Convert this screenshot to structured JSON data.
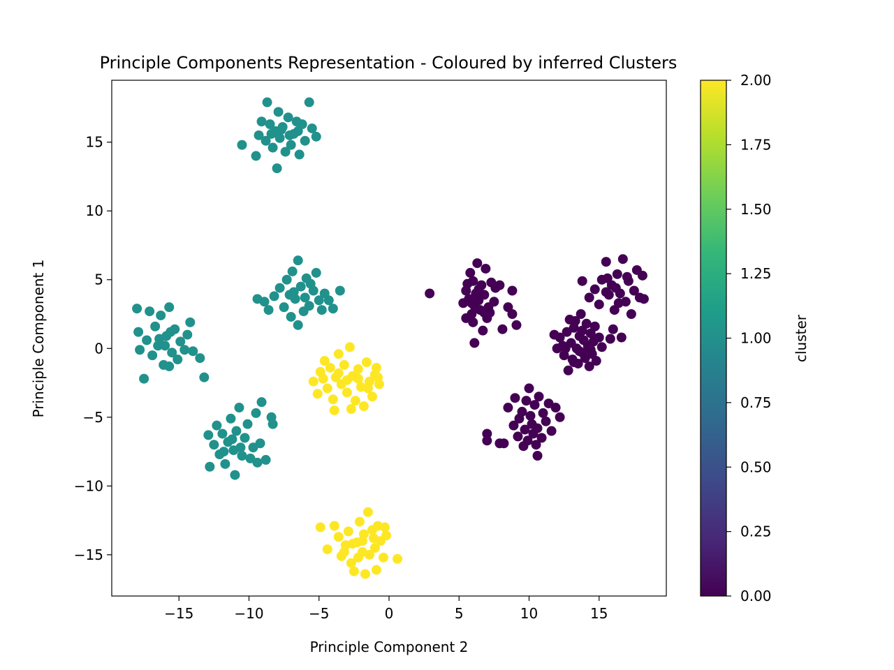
{
  "chart_data": {
    "type": "scatter",
    "title": "Principle Components Representation - Coloured by inferred Clusters",
    "xlabel": "Principle Component 2",
    "ylabel": "Principle Component 1",
    "xlim": [
      -19.8,
      19.8
    ],
    "ylim": [
      -18.0,
      19.5
    ],
    "xticks": [
      -15,
      -10,
      -5,
      0,
      5,
      10,
      15
    ],
    "xtick_labels": [
      "−15",
      "−10",
      "−5",
      "0",
      "5",
      "10",
      "15"
    ],
    "yticks": [
      -15,
      -10,
      -5,
      0,
      5,
      10,
      15
    ],
    "ytick_labels": [
      "−15",
      "−10",
      "−5",
      "0",
      "5",
      "10",
      "15"
    ],
    "grid": false,
    "colorbar": {
      "label": "cluster",
      "range": [
        0.0,
        2.0
      ],
      "ticks": [
        0.0,
        0.25,
        0.5,
        0.75,
        1.0,
        1.25,
        1.5,
        1.75,
        2.0
      ],
      "tick_labels": [
        "0.00",
        "0.25",
        "0.50",
        "0.75",
        "1.00",
        "1.25",
        "1.50",
        "1.75",
        "2.00"
      ],
      "colormap": "viridis",
      "colormap_stops": [
        "#440154",
        "#482878",
        "#3e4989",
        "#31688e",
        "#26828e",
        "#1f9e89",
        "#35b779",
        "#6ece58",
        "#b5de2b",
        "#fde725"
      ]
    },
    "series": [
      {
        "name": "cluster 0",
        "cluster": 0,
        "color": "#440154",
        "points": [
          [
            2.9,
            4.0
          ],
          [
            5.3,
            3.3
          ],
          [
            5.5,
            4.2
          ],
          [
            5.7,
            3.6
          ],
          [
            5.8,
            5.5
          ],
          [
            5.9,
            2.5
          ],
          [
            6.0,
            4.9
          ],
          [
            6.1,
            3.1
          ],
          [
            6.2,
            4.0
          ],
          [
            6.3,
            6.2
          ],
          [
            6.4,
            3.5
          ],
          [
            6.5,
            2.8
          ],
          [
            6.6,
            4.6
          ],
          [
            6.7,
            1.3
          ],
          [
            6.8,
            3.9
          ],
          [
            6.9,
            5.8
          ],
          [
            7.0,
            2.2
          ],
          [
            7.1,
            3.0
          ],
          [
            7.3,
            4.8
          ],
          [
            7.5,
            3.4
          ],
          [
            7.6,
            4.4
          ],
          [
            5.5,
            2.2
          ],
          [
            6.0,
            1.9
          ],
          [
            6.1,
            0.4
          ],
          [
            5.6,
            4.7
          ],
          [
            6.4,
            4.3
          ],
          [
            7.2,
            2.6
          ],
          [
            8.1,
            1.4
          ],
          [
            8.5,
            3.0
          ],
          [
            8.8,
            2.5
          ],
          [
            8.8,
            4.2
          ],
          [
            9.1,
            1.7
          ],
          [
            7.9,
            4.6
          ],
          [
            6.8,
            2.6
          ],
          [
            6.3,
            3.7
          ],
          [
            5.9,
            3.3
          ],
          [
            12.2,
            0.8
          ],
          [
            12.4,
            0.2
          ],
          [
            12.5,
            -0.5
          ],
          [
            12.7,
            1.2
          ],
          [
            12.8,
            -1.6
          ],
          [
            13.0,
            0.4
          ],
          [
            13.1,
            -0.8
          ],
          [
            13.2,
            1.5
          ],
          [
            13.3,
            2.0
          ],
          [
            13.4,
            0.0
          ],
          [
            13.5,
            -1.1
          ],
          [
            13.6,
            0.9
          ],
          [
            13.7,
            2.5
          ],
          [
            13.8,
            -0.3
          ],
          [
            13.9,
            0.6
          ],
          [
            14.0,
            -0.7
          ],
          [
            14.1,
            1.8
          ],
          [
            14.2,
            0.2
          ],
          [
            14.3,
            -1.3
          ],
          [
            14.4,
            1.1
          ],
          [
            14.5,
            -0.4
          ],
          [
            14.6,
            0.5
          ],
          [
            14.8,
            -0.9
          ],
          [
            15.0,
            0.8
          ],
          [
            15.2,
            0.1
          ],
          [
            12.0,
            0.0
          ],
          [
            13.6,
            -0.2
          ],
          [
            12.9,
            2.1
          ],
          [
            14.7,
            1.6
          ],
          [
            11.8,
            1.0
          ],
          [
            13.2,
            -1.0
          ],
          [
            12.6,
            0.0
          ],
          [
            14.4,
            -0.1
          ],
          [
            13.8,
            1.3
          ],
          [
            13.8,
            4.9
          ],
          [
            14.3,
            3.7
          ],
          [
            14.7,
            4.3
          ],
          [
            15.0,
            3.2
          ],
          [
            15.2,
            5.0
          ],
          [
            15.5,
            6.3
          ],
          [
            15.7,
            3.9
          ],
          [
            15.9,
            4.6
          ],
          [
            16.1,
            2.8
          ],
          [
            16.3,
            5.4
          ],
          [
            16.5,
            4.0
          ],
          [
            16.7,
            6.5
          ],
          [
            16.9,
            3.4
          ],
          [
            17.1,
            4.9
          ],
          [
            17.3,
            2.5
          ],
          [
            17.5,
            4.2
          ],
          [
            17.7,
            5.7
          ],
          [
            17.9,
            3.7
          ],
          [
            18.1,
            5.3
          ],
          [
            18.2,
            3.6
          ],
          [
            16.0,
            1.4
          ],
          [
            15.8,
            0.7
          ],
          [
            16.6,
            0.8
          ],
          [
            15.5,
            4.1
          ],
          [
            16.4,
            3.3
          ],
          [
            17.0,
            5.2
          ],
          [
            16.2,
            4.4
          ],
          [
            15.6,
            5.1
          ],
          [
            8.2,
            -6.9
          ],
          [
            8.5,
            -4.3
          ],
          [
            8.9,
            -5.6
          ],
          [
            9.0,
            -3.6
          ],
          [
            9.2,
            -6.4
          ],
          [
            9.3,
            -5.1
          ],
          [
            9.5,
            -4.6
          ],
          [
            9.6,
            -7.1
          ],
          [
            9.7,
            -5.9
          ],
          [
            9.8,
            -3.8
          ],
          [
            9.9,
            -6.7
          ],
          [
            10.0,
            -2.9
          ],
          [
            10.1,
            -4.9
          ],
          [
            10.2,
            -5.5
          ],
          [
            10.3,
            -6.2
          ],
          [
            10.4,
            -4.1
          ],
          [
            10.5,
            -7.0
          ],
          [
            10.6,
            -5.8
          ],
          [
            10.7,
            -3.5
          ],
          [
            10.9,
            -6.5
          ],
          [
            11.0,
            -4.7
          ],
          [
            11.2,
            -5.3
          ],
          [
            11.4,
            -4.0
          ],
          [
            11.6,
            -6.0
          ],
          [
            12.2,
            -5.0
          ],
          [
            7.0,
            -6.7
          ],
          [
            7.0,
            -6.2
          ],
          [
            7.9,
            -6.9
          ],
          [
            10.6,
            -7.8
          ],
          [
            11.9,
            -4.3
          ]
        ]
      },
      {
        "name": "cluster 1",
        "cluster": 1,
        "color": "#21918c",
        "points": [
          [
            -10.5,
            14.8
          ],
          [
            -9.5,
            14.0
          ],
          [
            -9.3,
            15.5
          ],
          [
            -9.1,
            16.5
          ],
          [
            -8.8,
            15.1
          ],
          [
            -8.7,
            17.9
          ],
          [
            -8.5,
            16.3
          ],
          [
            -8.3,
            14.6
          ],
          [
            -8.1,
            15.8
          ],
          [
            -8.0,
            13.1
          ],
          [
            -7.9,
            17.2
          ],
          [
            -7.8,
            15.3
          ],
          [
            -7.6,
            16.1
          ],
          [
            -7.4,
            14.3
          ],
          [
            -7.2,
            16.8
          ],
          [
            -7.0,
            14.8
          ],
          [
            -6.8,
            15.6
          ],
          [
            -6.6,
            16.5
          ],
          [
            -6.4,
            14.1
          ],
          [
            -6.2,
            16.3
          ],
          [
            -6.0,
            15.1
          ],
          [
            -5.7,
            17.9
          ],
          [
            -5.5,
            16.0
          ],
          [
            -5.2,
            15.4
          ],
          [
            -8.4,
            15.6
          ],
          [
            -7.7,
            15.9
          ],
          [
            -7.1,
            15.5
          ],
          [
            -6.5,
            15.8
          ],
          [
            -9.4,
            3.6
          ],
          [
            -8.9,
            3.4
          ],
          [
            -8.6,
            2.8
          ],
          [
            -8.2,
            3.8
          ],
          [
            -7.8,
            4.4
          ],
          [
            -7.5,
            3.0
          ],
          [
            -7.3,
            5.0
          ],
          [
            -7.0,
            2.3
          ],
          [
            -6.9,
            5.6
          ],
          [
            -6.7,
            3.6
          ],
          [
            -6.5,
            6.4
          ],
          [
            -6.5,
            1.7
          ],
          [
            -6.3,
            4.5
          ],
          [
            -6.1,
            2.7
          ],
          [
            -5.9,
            5.1
          ],
          [
            -5.7,
            3.1
          ],
          [
            -5.4,
            4.2
          ],
          [
            -5.2,
            5.5
          ],
          [
            -5.0,
            3.5
          ],
          [
            -4.8,
            2.8
          ],
          [
            -4.6,
            4.0
          ],
          [
            -4.3,
            3.5
          ],
          [
            -4.0,
            2.9
          ],
          [
            -3.5,
            4.2
          ],
          [
            -6.8,
            4.1
          ],
          [
            -6.0,
            3.7
          ],
          [
            -5.6,
            4.7
          ],
          [
            -7.1,
            3.9
          ],
          [
            -18.0,
            2.9
          ],
          [
            -17.9,
            1.2
          ],
          [
            -17.8,
            -0.1
          ],
          [
            -17.5,
            -2.2
          ],
          [
            -17.3,
            0.6
          ],
          [
            -17.1,
            2.7
          ],
          [
            -16.9,
            -0.5
          ],
          [
            -16.7,
            1.6
          ],
          [
            -16.5,
            0.2
          ],
          [
            -16.3,
            2.4
          ],
          [
            -16.1,
            -1.2
          ],
          [
            -15.9,
            0.9
          ],
          [
            -15.7,
            3.0
          ],
          [
            -15.5,
            -0.3
          ],
          [
            -15.3,
            1.4
          ],
          [
            -15.1,
            -0.8
          ],
          [
            -14.9,
            0.5
          ],
          [
            -14.6,
            -0.1
          ],
          [
            -14.4,
            1.0
          ],
          [
            -14.2,
            1.9
          ],
          [
            -14.0,
            -0.2
          ],
          [
            -13.5,
            -0.7
          ],
          [
            -13.2,
            -2.1
          ],
          [
            -15.7,
            -1.3
          ],
          [
            -16.4,
            0.7
          ],
          [
            -15.6,
            1.2
          ],
          [
            -16.0,
            0.2
          ],
          [
            -12.9,
            -6.3
          ],
          [
            -12.8,
            -8.6
          ],
          [
            -12.5,
            -7.0
          ],
          [
            -12.3,
            -5.6
          ],
          [
            -12.1,
            -7.7
          ],
          [
            -11.9,
            -6.2
          ],
          [
            -11.7,
            -8.4
          ],
          [
            -11.5,
            -6.8
          ],
          [
            -11.3,
            -5.1
          ],
          [
            -11.1,
            -7.4
          ],
          [
            -11.0,
            -9.2
          ],
          [
            -10.9,
            -6.0
          ],
          [
            -10.7,
            -4.3
          ],
          [
            -10.5,
            -7.8
          ],
          [
            -10.3,
            -6.5
          ],
          [
            -10.1,
            -5.5
          ],
          [
            -9.9,
            -8.0
          ],
          [
            -9.7,
            -7.2
          ],
          [
            -9.5,
            -4.7
          ],
          [
            -9.4,
            -8.3
          ],
          [
            -9.2,
            -6.9
          ],
          [
            -9.1,
            -3.9
          ],
          [
            -8.8,
            -8.1
          ],
          [
            -8.4,
            -5.0
          ],
          [
            -8.3,
            -5.5
          ],
          [
            -11.2,
            -6.6
          ],
          [
            -10.6,
            -7.2
          ],
          [
            -11.8,
            -7.5
          ]
        ]
      },
      {
        "name": "cluster 2",
        "cluster": 2,
        "color": "#fde725",
        "points": [
          [
            -5.4,
            -2.4
          ],
          [
            -5.1,
            -3.3
          ],
          [
            -4.9,
            -1.7
          ],
          [
            -4.6,
            -0.9
          ],
          [
            -4.4,
            -2.9
          ],
          [
            -4.2,
            -1.4
          ],
          [
            -4.0,
            -3.7
          ],
          [
            -3.9,
            -4.5
          ],
          [
            -3.8,
            -2.1
          ],
          [
            -3.6,
            -0.4
          ],
          [
            -3.4,
            -2.6
          ],
          [
            -3.2,
            -1.2
          ],
          [
            -3.0,
            -3.2
          ],
          [
            -2.8,
            0.1
          ],
          [
            -2.6,
            -2.0
          ],
          [
            -2.4,
            -3.8
          ],
          [
            -2.2,
            -1.5
          ],
          [
            -2.0,
            -2.8
          ],
          [
            -1.8,
            -4.2
          ],
          [
            -1.6,
            -1.0
          ],
          [
            -1.4,
            -2.4
          ],
          [
            -1.2,
            -3.5
          ],
          [
            -1.0,
            -1.9
          ],
          [
            -0.9,
            -1.4
          ],
          [
            -0.8,
            -2.1
          ],
          [
            -0.7,
            -2.6
          ],
          [
            -3.0,
            -2.3
          ],
          [
            -2.2,
            -2.2
          ],
          [
            -3.6,
            -1.8
          ],
          [
            -1.5,
            -2.9
          ],
          [
            -2.7,
            -4.4
          ],
          [
            -4.7,
            -2.2
          ],
          [
            -4.9,
            -13.0
          ],
          [
            -4.4,
            -14.6
          ],
          [
            -3.9,
            -12.9
          ],
          [
            -3.6,
            -13.7
          ],
          [
            -3.4,
            -15.1
          ],
          [
            -3.1,
            -14.3
          ],
          [
            -2.9,
            -13.3
          ],
          [
            -2.7,
            -15.6
          ],
          [
            -2.5,
            -16.2
          ],
          [
            -2.3,
            -14.1
          ],
          [
            -2.1,
            -12.6
          ],
          [
            -1.9,
            -14.8
          ],
          [
            -1.8,
            -13.5
          ],
          [
            -1.7,
            -16.4
          ],
          [
            -1.5,
            -11.9
          ],
          [
            -1.4,
            -15.0
          ],
          [
            -1.2,
            -13.2
          ],
          [
            -1.0,
            -14.5
          ],
          [
            -0.9,
            -16.1
          ],
          [
            -0.8,
            -12.9
          ],
          [
            -0.6,
            -14.0
          ],
          [
            -0.4,
            -15.2
          ],
          [
            -0.2,
            -13.6
          ],
          [
            0.6,
            -15.3
          ],
          [
            -2.6,
            -14.2
          ],
          [
            -1.9,
            -14.0
          ],
          [
            -0.3,
            -13.0
          ],
          [
            -1.1,
            -13.8
          ],
          [
            -2.2,
            -15.2
          ],
          [
            -3.2,
            -14.8
          ]
        ]
      }
    ]
  }
}
